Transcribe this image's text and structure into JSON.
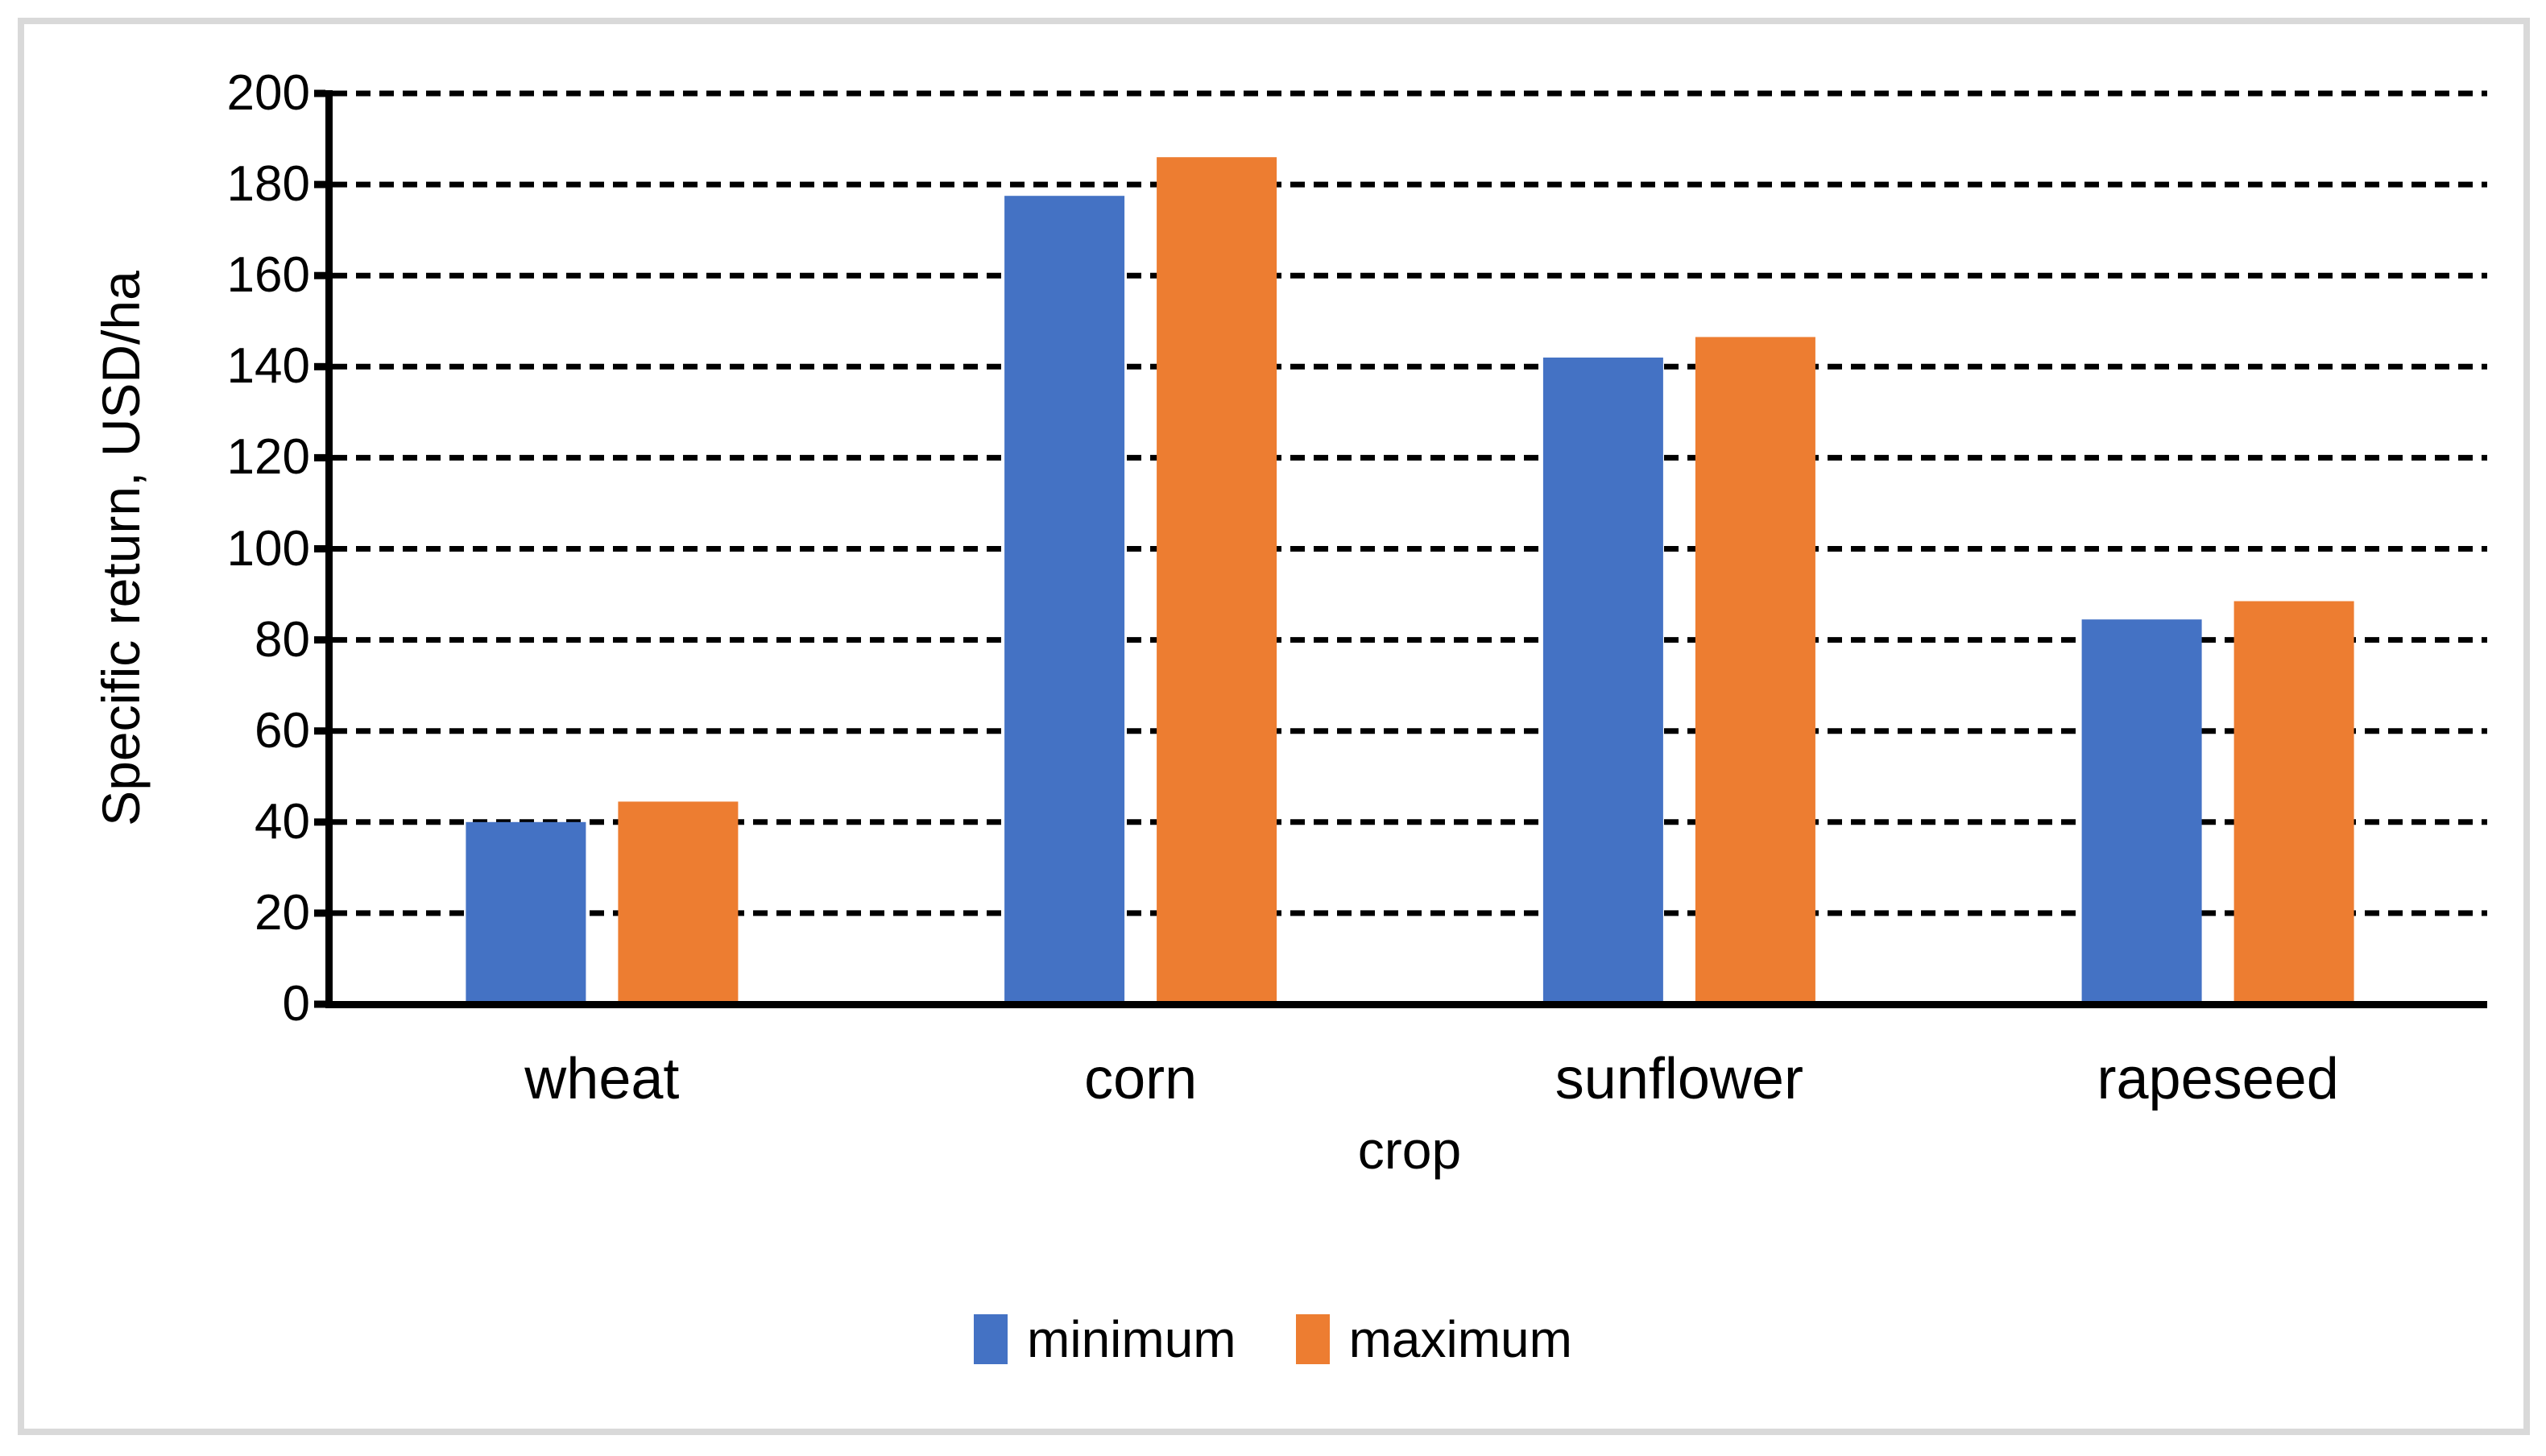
{
  "chart_data": {
    "type": "bar",
    "title": "",
    "categories": [
      "wheat",
      "corn",
      "sunflower",
      "rapeseed"
    ],
    "series": [
      {
        "name": "minimum",
        "color": "#4472C4",
        "values": [
          40,
          177.5,
          142,
          84.5
        ]
      },
      {
        "name": "maximum",
        "color": "#ED7D31",
        "values": [
          44.5,
          186,
          146.5,
          88.5
        ]
      }
    ],
    "xlabel": "crop",
    "ylabel": "Specific return, USD/ha",
    "ylim": [
      0,
      200
    ],
    "ytick_step": 20,
    "yticks": [
      0,
      20,
      40,
      60,
      80,
      100,
      120,
      140,
      160,
      180,
      200
    ],
    "grid": "horizontal-dashed",
    "gridline_color": "#000000",
    "axis_color": "#000000",
    "frame_border_color": "#D9D9D9",
    "legend_position": "bottom"
  }
}
